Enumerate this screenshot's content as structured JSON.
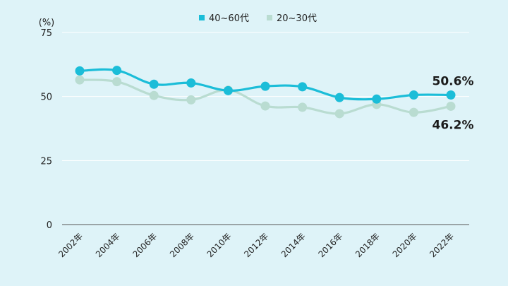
{
  "chart_data": {
    "type": "line",
    "title": "",
    "ylabel": "(%)",
    "xlabel": "",
    "categories": [
      "2002年",
      "2004年",
      "2006年",
      "2008年",
      "2010年",
      "2012年",
      "2014年",
      "2016年",
      "2018年",
      "2020年",
      "2022年"
    ],
    "ylim": [
      0,
      75
    ],
    "yticks": [
      0,
      25,
      50,
      75
    ],
    "grid": true,
    "legend_position": "top-center",
    "series": [
      {
        "name": "40~60代",
        "color": "#1bbdd8",
        "values": [
          60.0,
          60.2,
          54.8,
          55.3,
          52.3,
          54.0,
          53.8,
          49.6,
          49.0,
          50.6,
          50.6
        ]
      },
      {
        "name": "20~30代",
        "color": "#b9dcd1",
        "values": [
          56.5,
          55.8,
          50.4,
          48.7,
          52.5,
          46.3,
          45.8,
          43.3,
          46.9,
          43.8,
          46.2
        ]
      }
    ],
    "annotations": [
      {
        "series": 0,
        "index": 10,
        "text": "50.6%"
      },
      {
        "series": 1,
        "index": 10,
        "text": "46.2%"
      }
    ]
  }
}
